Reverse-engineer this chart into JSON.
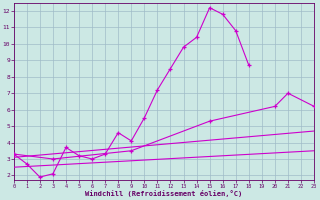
{
  "bg_color": "#cce8e4",
  "line_color": "#cc00cc",
  "grid_color": "#a0bcc8",
  "xlabel": "Windchill (Refroidissement éolien,°C)",
  "xlabel_color": "#660066",
  "tick_color": "#660066",
  "xlim": [
    0,
    23
  ],
  "ylim": [
    1.7,
    12.5
  ],
  "xticks": [
    0,
    1,
    2,
    3,
    4,
    5,
    6,
    7,
    8,
    9,
    10,
    11,
    12,
    13,
    14,
    15,
    16,
    17,
    18,
    19,
    20,
    21,
    22,
    23
  ],
  "yticks": [
    2,
    3,
    4,
    5,
    6,
    7,
    8,
    9,
    10,
    11,
    12
  ],
  "line1_x": [
    0,
    1,
    2,
    3,
    4,
    5,
    6,
    7,
    8,
    9,
    10,
    11,
    12,
    13,
    14,
    15,
    16,
    17,
    18
  ],
  "line1_y": [
    3.3,
    2.7,
    1.9,
    2.1,
    3.7,
    3.2,
    3.0,
    3.3,
    4.6,
    4.1,
    5.5,
    7.2,
    8.5,
    9.8,
    10.4,
    12.2,
    11.8,
    10.8,
    8.7
  ],
  "line2_x": [
    0,
    3,
    9,
    15,
    20,
    21,
    23
  ],
  "line2_y": [
    3.3,
    3.0,
    3.5,
    5.3,
    6.2,
    7.0,
    6.2
  ],
  "line3_x": [
    0,
    23
  ],
  "line3_y": [
    3.1,
    4.7
  ],
  "line4_x": [
    0,
    23
  ],
  "line4_y": [
    2.5,
    3.5
  ]
}
